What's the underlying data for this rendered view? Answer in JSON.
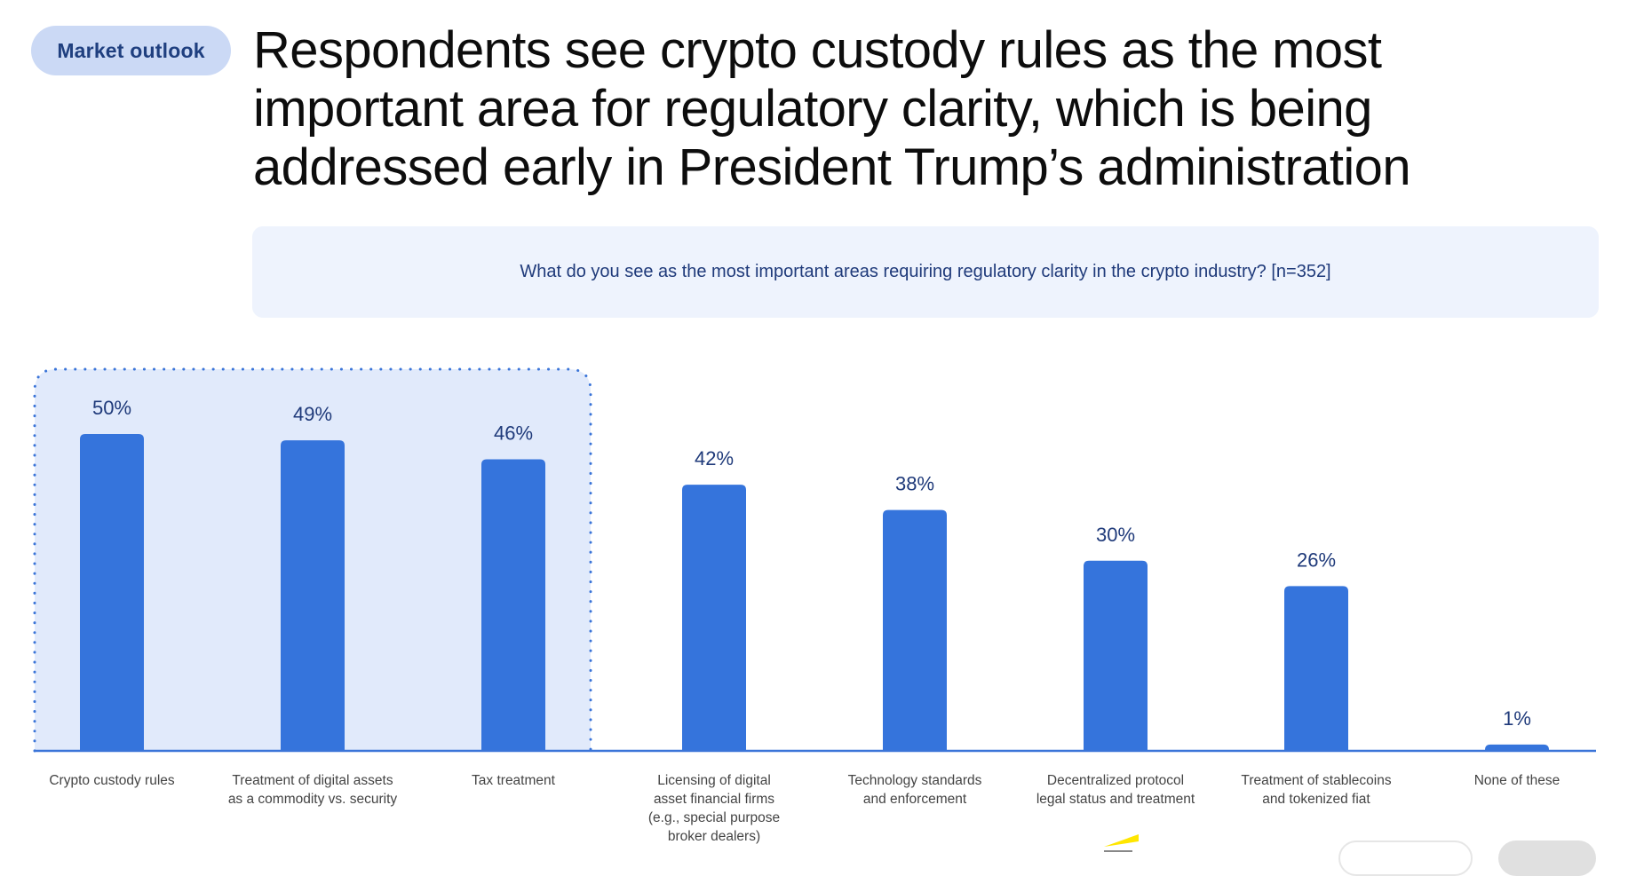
{
  "header": {
    "tag": "Market outlook",
    "title": "Respondents see crypto custody rules as the most important area for regulatory clarity, which is being addressed early in President Trump’s administration",
    "question": "What do you see as the most important areas requiring regulatory clarity in the crypto industry? [n=352]"
  },
  "colors": {
    "bar": "#3574dc",
    "highlight_fill": "#e1eafb",
    "highlight_border": "#3a74d8",
    "value_label": "#1f3a7a",
    "category_label": "#444444",
    "axis": "#3a74d8",
    "logo_beam": "#ffe600"
  },
  "chart_data": {
    "type": "bar",
    "title": "What do you see as the most important areas requiring regulatory clarity in the crypto industry? [n=352]",
    "xlabel": "",
    "ylabel": "",
    "ylim": [
      0,
      50
    ],
    "grid": false,
    "unit": "%",
    "categories": [
      [
        "Crypto custody rules"
      ],
      [
        "Treatment of digital assets",
        "as a commodity vs. security"
      ],
      [
        "Tax treatment"
      ],
      [
        "Licensing of digital",
        "asset financial firms",
        "(e.g., special purpose",
        "broker dealers)"
      ],
      [
        "Technology standards",
        "and enforcement"
      ],
      [
        "Decentralized protocol",
        "legal status and treatment"
      ],
      [
        "Treatment of stablecoins",
        "and tokenized fiat"
      ],
      [
        "None of these"
      ]
    ],
    "values": [
      50,
      49,
      46,
      42,
      38,
      30,
      26,
      1
    ],
    "value_labels": [
      "50%",
      "49%",
      "46%",
      "42%",
      "38%",
      "30%",
      "26%",
      "1%"
    ],
    "highlighted_categories": [
      0,
      1,
      2
    ]
  },
  "footer": {
    "logo": "ey-logo"
  }
}
